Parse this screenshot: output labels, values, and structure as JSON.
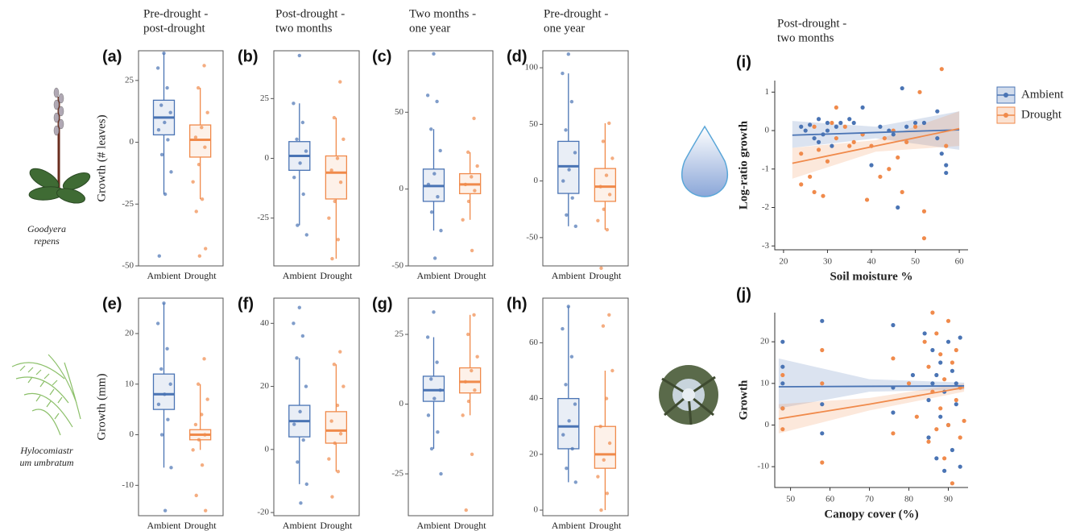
{
  "column_headers": [
    [
      "Pre-drought -",
      "post-drought"
    ],
    [
      "Post-drought -",
      "two months"
    ],
    [
      "Two months -",
      "one year"
    ],
    [
      "Pre-drought -",
      "one year"
    ],
    [
      "Post-drought -",
      "two months"
    ]
  ],
  "species": [
    [
      "Goodyera",
      "repens"
    ],
    [
      "Hylocomiastr",
      "um umbratum"
    ]
  ],
  "chart_data": [
    {
      "type": "box",
      "label": "(a)",
      "ylabel": "Growth (# leaves)",
      "categories": [
        "Ambient",
        "Drought"
      ],
      "ylim": [
        -50,
        37
      ],
      "yticks": [
        25,
        0,
        -25,
        -50
      ],
      "boxes": [
        {
          "color": "#4a74b4",
          "whisker_low": -21,
          "q1": 3,
          "median": 10,
          "q3": 17,
          "whisker_high": 36,
          "points": [
            36,
            30,
            22,
            15,
            12,
            8,
            5,
            1,
            -5,
            -12,
            -21,
            -46
          ]
        },
        {
          "color": "#f08a4b",
          "whisker_low": -23,
          "q1": -6,
          "median": 1,
          "q3": 7,
          "whisker_high": 22,
          "points": [
            31,
            22,
            12,
            6,
            2,
            -2,
            -9,
            -16,
            -23,
            -28,
            -43,
            -46
          ]
        }
      ]
    },
    {
      "type": "box",
      "label": "(b)",
      "categories": [
        "Ambient",
        "Drought"
      ],
      "ylim": [
        -45,
        45
      ],
      "yticks": [
        25,
        0,
        -25
      ],
      "boxes": [
        {
          "color": "#4a74b4",
          "whisker_low": -28,
          "q1": -5,
          "median": 1,
          "q3": 7,
          "whisker_high": 23,
          "points": [
            43,
            23,
            15,
            8,
            3,
            -2,
            -8,
            -15,
            -28,
            -32
          ]
        },
        {
          "color": "#f08a4b",
          "whisker_low": -42,
          "q1": -17,
          "median": -6,
          "q3": 1,
          "whisker_high": 17,
          "points": [
            32,
            17,
            8,
            0,
            -5,
            -10,
            -18,
            -25,
            -34,
            -42
          ]
        }
      ]
    },
    {
      "type": "box",
      "label": "(c)",
      "categories": [
        "Ambient",
        "Drought"
      ],
      "ylim": [
        -50,
        90
      ],
      "yticks": [
        50,
        0,
        -50
      ],
      "boxes": [
        {
          "color": "#4a74b4",
          "whisker_low": -27,
          "q1": -8,
          "median": 2,
          "q3": 13,
          "whisker_high": 39,
          "points": [
            88,
            61,
            57,
            39,
            25,
            10,
            3,
            -5,
            -15,
            -27,
            -45
          ]
        },
        {
          "color": "#f08a4b",
          "whisker_low": -20,
          "q1": -3,
          "median": 3,
          "q3": 10,
          "whisker_high": 24,
          "points": [
            46,
            24,
            15,
            8,
            3,
            -1,
            -8,
            -20,
            -40
          ]
        }
      ]
    },
    {
      "type": "box",
      "label": "(d)",
      "categories": [
        "Ambient",
        "Drought"
      ],
      "ylim": [
        -75,
        115
      ],
      "yticks": [
        100,
        50,
        0,
        -50
      ],
      "boxes": [
        {
          "color": "#4a74b4",
          "whisker_low": -40,
          "q1": -11,
          "median": 13,
          "q3": 35,
          "whisker_high": 95,
          "points": [
            112,
            95,
            70,
            45,
            25,
            10,
            0,
            -15,
            -30,
            -40
          ]
        },
        {
          "color": "#f08a4b",
          "whisker_low": -43,
          "q1": -18,
          "median": -5,
          "q3": 11,
          "whisker_high": 51,
          "points": [
            51,
            35,
            20,
            5,
            -5,
            -12,
            -25,
            -35,
            -43,
            -77
          ]
        }
      ]
    },
    {
      "type": "box",
      "label": "(e)",
      "ylabel": "Growth (mm)",
      "categories": [
        "Ambient",
        "Drought"
      ],
      "ylim": [
        -16,
        27
      ],
      "yticks": [
        20,
        10,
        0,
        -10
      ],
      "boxes": [
        {
          "color": "#4a74b4",
          "whisker_low": -6.5,
          "q1": 5,
          "median": 8,
          "q3": 12,
          "whisker_high": 26,
          "points": [
            26,
            22,
            17,
            13,
            10,
            8,
            6,
            3,
            0,
            -6.5,
            -15
          ]
        },
        {
          "color": "#f08a4b",
          "whisker_low": -3,
          "q1": -1,
          "median": 0,
          "q3": 1,
          "whisker_high": 10,
          "points": [
            15,
            10,
            7,
            4,
            2,
            0,
            -1,
            -3,
            -6,
            -12,
            -15
          ]
        }
      ]
    },
    {
      "type": "box",
      "label": "(f)",
      "categories": [
        "Ambient",
        "Drought"
      ],
      "ylim": [
        -21,
        48
      ],
      "yticks": [
        40,
        20,
        0,
        -20
      ],
      "boxes": [
        {
          "color": "#4a74b4",
          "whisker_low": -11,
          "q1": 4,
          "median": 9,
          "q3": 14,
          "whisker_high": 29,
          "points": [
            45,
            40,
            36,
            29,
            20,
            12,
            8,
            3,
            -4,
            -11,
            -17
          ]
        },
        {
          "color": "#f08a4b",
          "whisker_low": -7,
          "q1": 2,
          "median": 6,
          "q3": 12,
          "whisker_high": 27,
          "points": [
            31,
            27,
            20,
            14,
            9,
            5,
            2,
            -3,
            -7,
            -15
          ]
        }
      ]
    },
    {
      "type": "box",
      "label": "(g)",
      "categories": [
        "Ambient",
        "Drought"
      ],
      "ylim": [
        -40,
        38
      ],
      "yticks": [
        25,
        0,
        -25
      ],
      "boxes": [
        {
          "color": "#4a74b4",
          "whisker_low": -16,
          "q1": 1,
          "median": 5,
          "q3": 10,
          "whisker_high": 24,
          "points": [
            33,
            24,
            15,
            9,
            5,
            2,
            -4,
            -10,
            -16,
            -25
          ]
        },
        {
          "color": "#f08a4b",
          "whisker_low": -4,
          "q1": 4,
          "median": 8,
          "q3": 13,
          "whisker_high": 32,
          "points": [
            32,
            25,
            17,
            12,
            8,
            5,
            1,
            -4,
            -18,
            -38
          ]
        }
      ]
    },
    {
      "type": "box",
      "label": "(h)",
      "categories": [
        "Ambient",
        "Drought"
      ],
      "ylim": [
        -2,
        76
      ],
      "yticks": [
        60,
        40,
        20,
        0
      ],
      "boxes": [
        {
          "color": "#4a74b4",
          "whisker_low": 10,
          "q1": 22,
          "median": 30,
          "q3": 40,
          "whisker_high": 73,
          "points": [
            73,
            65,
            55,
            45,
            38,
            32,
            27,
            22,
            15,
            10
          ]
        },
        {
          "color": "#f08a4b",
          "whisker_low": 0,
          "q1": 15,
          "median": 20,
          "q3": 30,
          "whisker_high": 50,
          "points": [
            70,
            66,
            50,
            40,
            30,
            24,
            18,
            12,
            6,
            0
          ]
        }
      ]
    },
    {
      "type": "scatter",
      "label": "(i)",
      "xlabel": "Soil moisture %",
      "ylabel": "Log-ratio growth",
      "xlim": [
        18,
        62
      ],
      "xticks": [
        20,
        30,
        40,
        50,
        60
      ],
      "ylim": [
        -3.1,
        1.3
      ],
      "yticks": [
        1,
        0,
        -1,
        -2,
        -3
      ],
      "legend": true,
      "fit_x": [
        22,
        41,
        60
      ],
      "series": [
        {
          "name": "Ambient",
          "color": "#4a74b4",
          "x": [
            24,
            25,
            26,
            27,
            28,
            28,
            29,
            30,
            30,
            31,
            32,
            33,
            35,
            36,
            38,
            38,
            40,
            42,
            44,
            45,
            46,
            47,
            48,
            50,
            52,
            55,
            55,
            56,
            57,
            57
          ],
          "y": [
            0.1,
            0,
            0.15,
            -0.2,
            0.3,
            -0.3,
            -0.1,
            0.2,
            0,
            -0.4,
            0.1,
            0.2,
            0.3,
            0.2,
            0.6,
            -0.1,
            -0.9,
            0.1,
            0,
            -0.1,
            -2,
            1.1,
            0.1,
            0.2,
            0.2,
            -0.2,
            0.5,
            -0.6,
            -0.9,
            -1.1
          ],
          "fit_y": [
            -0.12,
            -0.05,
            0.02
          ],
          "ci_low": [
            -0.45,
            -0.2,
            -0.5
          ],
          "ci_high": [
            0.25,
            0.1,
            0.5
          ]
        },
        {
          "name": "Drought",
          "color": "#f08a4b",
          "x": [
            24,
            24,
            26,
            27,
            27,
            28,
            29,
            30,
            31,
            32,
            32,
            34,
            35,
            36,
            38,
            39,
            40,
            42,
            43,
            44,
            45,
            46,
            47,
            48,
            50,
            51,
            52,
            52,
            56,
            57
          ],
          "y": [
            -0.6,
            -1.4,
            -1.2,
            -1.6,
            0.1,
            -0.5,
            -1.7,
            -0.8,
            0.2,
            0.6,
            -0.2,
            0.1,
            -0.4,
            -0.3,
            -0.1,
            -1.8,
            -0.4,
            -1.2,
            -0.2,
            -1,
            0,
            -0.7,
            -1.6,
            -0.3,
            0.1,
            1.0,
            -2.1,
            -2.8,
            1.6,
            -0.4
          ],
          "fit_y": [
            -0.85,
            -0.4,
            0.05
          ],
          "ci_low": [
            -1.25,
            -0.55,
            -0.4
          ],
          "ci_high": [
            -0.45,
            -0.25,
            0.5
          ]
        }
      ]
    },
    {
      "type": "scatter",
      "label": "(j)",
      "xlabel": "Canopy cover (%)",
      "ylabel": "Growth",
      "xlim": [
        46,
        95
      ],
      "xticks": [
        50,
        60,
        70,
        80,
        90
      ],
      "ylim": [
        -15,
        27
      ],
      "yticks": [
        20,
        10,
        0,
        -10
      ],
      "legend": false,
      "fit_x": [
        47,
        70,
        94
      ],
      "series": [
        {
          "color": "#4a74b4",
          "x": [
            48,
            48,
            48,
            48,
            58,
            58,
            58,
            76,
            76,
            76,
            81,
            84,
            85,
            85,
            86,
            86,
            87,
            87,
            88,
            88,
            89,
            89,
            90,
            90,
            91,
            91,
            92,
            92,
            93,
            93
          ],
          "y": [
            20,
            14,
            10,
            4,
            25,
            5,
            -2,
            24,
            9,
            3,
            12,
            22,
            6,
            -3,
            18,
            10,
            -8,
            12,
            15,
            2,
            -11,
            8,
            20,
            0,
            13,
            -6,
            10,
            5,
            -10,
            21
          ],
          "fit_y": [
            9.2,
            9.3,
            9.4
          ],
          "ci_low": [
            4,
            8,
            8.5
          ],
          "ci_high": [
            16,
            11,
            10.2
          ]
        },
        {
          "color": "#f08a4b",
          "x": [
            48,
            48,
            48,
            58,
            58,
            58,
            76,
            76,
            80,
            82,
            84,
            85,
            85,
            86,
            86,
            87,
            87,
            88,
            88,
            89,
            89,
            90,
            90,
            91,
            91,
            92,
            92,
            93,
            93,
            94
          ],
          "y": [
            4,
            -1,
            12,
            10,
            -9,
            18,
            16,
            -2,
            10,
            2,
            20,
            -4,
            14,
            27,
            8,
            -1,
            22,
            4,
            17,
            -8,
            11,
            25,
            0,
            15,
            -14,
            6,
            18,
            -3,
            9,
            1
          ],
          "fit_y": [
            1.5,
            5,
            9
          ],
          "ci_low": [
            -2,
            3.5,
            8
          ],
          "ci_high": [
            5,
            6.5,
            10
          ]
        }
      ]
    }
  ]
}
